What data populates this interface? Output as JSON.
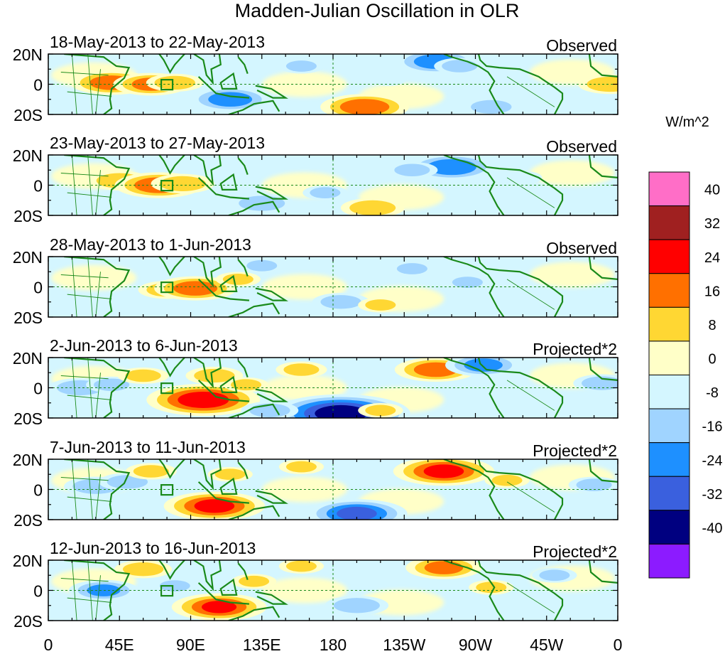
{
  "title": "Madden-Julian Oscillation in OLR",
  "chart_data": {
    "type": "heatmap",
    "title": "Madden-Julian Oscillation in OLR",
    "x_ticks": [
      "0",
      "45E",
      "90E",
      "135E",
      "180",
      "135W",
      "90W",
      "45W",
      "0"
    ],
    "y_ticks": [
      "20N",
      "0",
      "20S"
    ],
    "xlim": [
      0,
      360
    ],
    "ylim": [
      -20,
      20
    ],
    "colorbar": {
      "unit": "W/m^2",
      "levels": [
        "40",
        "32",
        "24",
        "16",
        "8",
        "0",
        "-8",
        "-16",
        "-24",
        "-32",
        "-40"
      ],
      "colors": [
        "#ff6ec7",
        "#a02020",
        "#ff0000",
        "#ff7000",
        "#ffd733",
        "#ffffc8",
        "#d4f6ff",
        "#a0d4ff",
        "#1e90ff",
        "#3a60de",
        "#000080",
        "#8c1bff"
      ]
    },
    "panels": [
      {
        "date": "18-May-2013 to 22-May-2013",
        "label": "Observed",
        "anomalies": [
          {
            "lon": 40,
            "lat": 1,
            "value": 20
          },
          {
            "lon": 65,
            "lat": 0,
            "value": 18
          },
          {
            "lon": 80,
            "lat": 1,
            "value": 12
          },
          {
            "lon": 115,
            "lat": -10,
            "value": -20
          },
          {
            "lon": 160,
            "lat": 12,
            "value": -8
          },
          {
            "lon": 200,
            "lat": -15,
            "value": 22
          },
          {
            "lon": 245,
            "lat": 15,
            "value": -20
          },
          {
            "lon": 260,
            "lat": 12,
            "value": -10
          },
          {
            "lon": 280,
            "lat": -15,
            "value": -12
          },
          {
            "lon": 215,
            "lat": 3,
            "value": -5
          },
          {
            "lon": 355,
            "lat": 0,
            "value": 14
          }
        ]
      },
      {
        "date": "23-May-2013 to 27-May-2013",
        "label": "Observed",
        "anomalies": [
          {
            "lon": 45,
            "lat": 3,
            "value": 14
          },
          {
            "lon": 70,
            "lat": 0,
            "value": 22
          },
          {
            "lon": 85,
            "lat": 1,
            "value": 14
          },
          {
            "lon": 135,
            "lat": -12,
            "value": -14
          },
          {
            "lon": 175,
            "lat": -5,
            "value": -8
          },
          {
            "lon": 205,
            "lat": -15,
            "value": 14
          },
          {
            "lon": 255,
            "lat": 12,
            "value": -22
          },
          {
            "lon": 230,
            "lat": 10,
            "value": -10
          },
          {
            "lon": 300,
            "lat": 5,
            "value": -6
          }
        ]
      },
      {
        "date": "28-May-2013 to 1-Jun-2013",
        "label": "Observed",
        "anomalies": [
          {
            "lon": 75,
            "lat": -2,
            "value": 12
          },
          {
            "lon": 93,
            "lat": -1,
            "value": 20
          },
          {
            "lon": 120,
            "lat": 5,
            "value": 8
          },
          {
            "lon": 185,
            "lat": -10,
            "value": -12
          },
          {
            "lon": 210,
            "lat": -12,
            "value": 8
          },
          {
            "lon": 135,
            "lat": 14,
            "value": -8
          },
          {
            "lon": 230,
            "lat": 12,
            "value": -8
          },
          {
            "lon": 265,
            "lat": 3,
            "value": -8
          }
        ]
      },
      {
        "date": "2-Jun-2013 to 6-Jun-2013",
        "label": "Projected*2",
        "anomalies": [
          {
            "lon": 20,
            "lat": 0,
            "value": -14
          },
          {
            "lon": 40,
            "lat": 2,
            "value": -10
          },
          {
            "lon": 60,
            "lat": 8,
            "value": 10
          },
          {
            "lon": 98,
            "lat": -8,
            "value": 30
          },
          {
            "lon": 105,
            "lat": 8,
            "value": 12
          },
          {
            "lon": 125,
            "lat": 2,
            "value": 8
          },
          {
            "lon": 160,
            "lat": 12,
            "value": 10
          },
          {
            "lon": 185,
            "lat": -17,
            "value": -38
          },
          {
            "lon": 140,
            "lat": -15,
            "value": -12
          },
          {
            "lon": 245,
            "lat": 12,
            "value": 20
          },
          {
            "lon": 210,
            "lat": -15,
            "value": 8
          },
          {
            "lon": 275,
            "lat": 15,
            "value": -18
          },
          {
            "lon": 350,
            "lat": 3,
            "value": -12
          }
        ]
      },
      {
        "date": "7-Jun-2013 to 11-Jun-2013",
        "label": "Projected*2",
        "anomalies": [
          {
            "lon": 30,
            "lat": 2,
            "value": -14
          },
          {
            "lon": 50,
            "lat": 5,
            "value": -12
          },
          {
            "lon": 65,
            "lat": 12,
            "value": 10
          },
          {
            "lon": 105,
            "lat": -11,
            "value": 26
          },
          {
            "lon": 115,
            "lat": 10,
            "value": 8
          },
          {
            "lon": 160,
            "lat": 15,
            "value": 8
          },
          {
            "lon": 195,
            "lat": -16,
            "value": -26
          },
          {
            "lon": 250,
            "lat": 12,
            "value": 26
          },
          {
            "lon": 290,
            "lat": 6,
            "value": 8
          },
          {
            "lon": 345,
            "lat": 3,
            "value": -10
          }
        ]
      },
      {
        "date": "12-Jun-2013 to 16-Jun-2013",
        "label": "Projected*2",
        "anomalies": [
          {
            "lon": 35,
            "lat": 0,
            "value": -16
          },
          {
            "lon": 60,
            "lat": 14,
            "value": 12
          },
          {
            "lon": 80,
            "lat": 3,
            "value": -8
          },
          {
            "lon": 108,
            "lat": -11,
            "value": 24
          },
          {
            "lon": 130,
            "lat": 6,
            "value": 8
          },
          {
            "lon": 160,
            "lat": 16,
            "value": 8
          },
          {
            "lon": 195,
            "lat": -10,
            "value": -14
          },
          {
            "lon": 250,
            "lat": 15,
            "value": 18
          },
          {
            "lon": 280,
            "lat": 2,
            "value": 8
          },
          {
            "lon": 320,
            "lat": 10,
            "value": -8
          }
        ]
      }
    ]
  }
}
